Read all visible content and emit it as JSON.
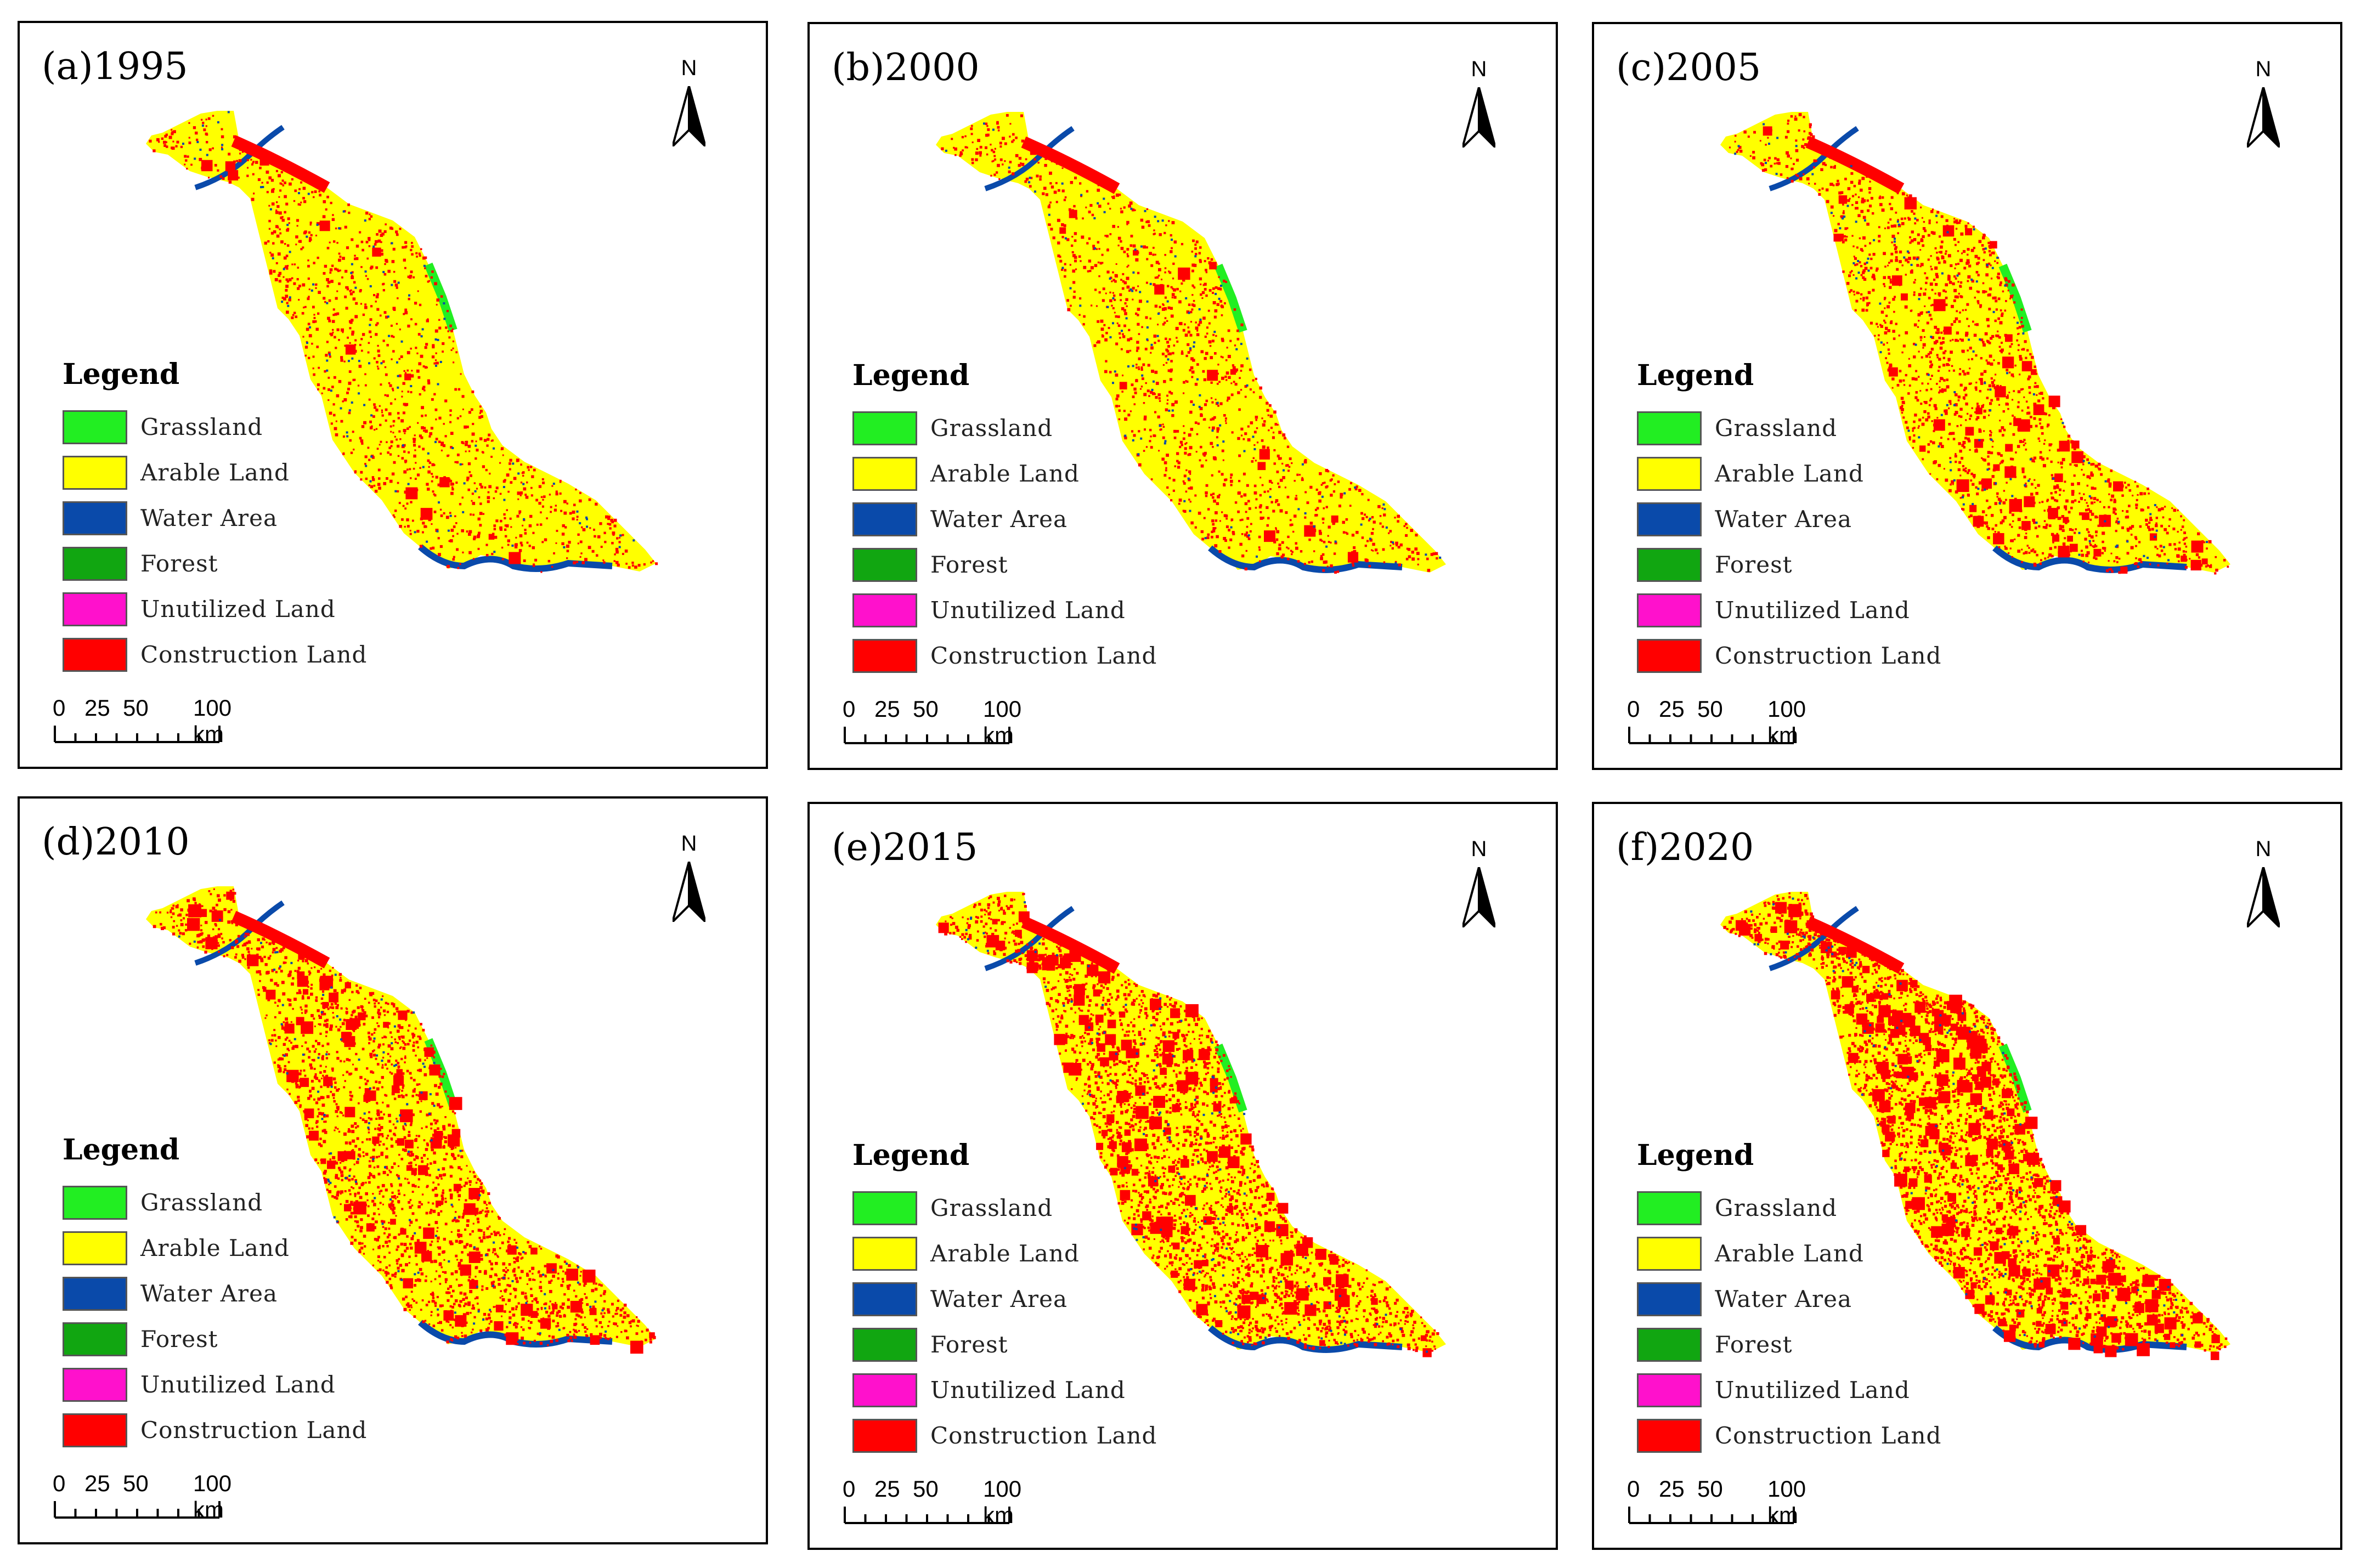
{
  "panels": [
    {
      "title": "(a)1995",
      "construction_density": 1
    },
    {
      "title": "(b)2000",
      "construction_density": 1
    },
    {
      "title": "(c)2005",
      "construction_density": 2
    },
    {
      "title": "(d)2010",
      "construction_density": 3
    },
    {
      "title": "(e)2015",
      "construction_density": 4
    },
    {
      "title": "(f)2020",
      "construction_density": 5
    }
  ],
  "north_arrow": {
    "label": "N"
  },
  "legend": {
    "title": "Legend",
    "items": [
      {
        "label": "Grassland",
        "color": "#22ee22"
      },
      {
        "label": "Arable Land",
        "color": "#ffff00"
      },
      {
        "label": "Water Area",
        "color": "#0a4aaa"
      },
      {
        "label": "Forest",
        "color": "#11a611"
      },
      {
        "label": "Unutilized Land",
        "color": "#ff11cc"
      },
      {
        "label": "Construction Land",
        "color": "#ff0000"
      }
    ]
  },
  "scale_bar": {
    "labels": [
      "0",
      "25",
      "50",
      "100 km"
    ]
  }
}
